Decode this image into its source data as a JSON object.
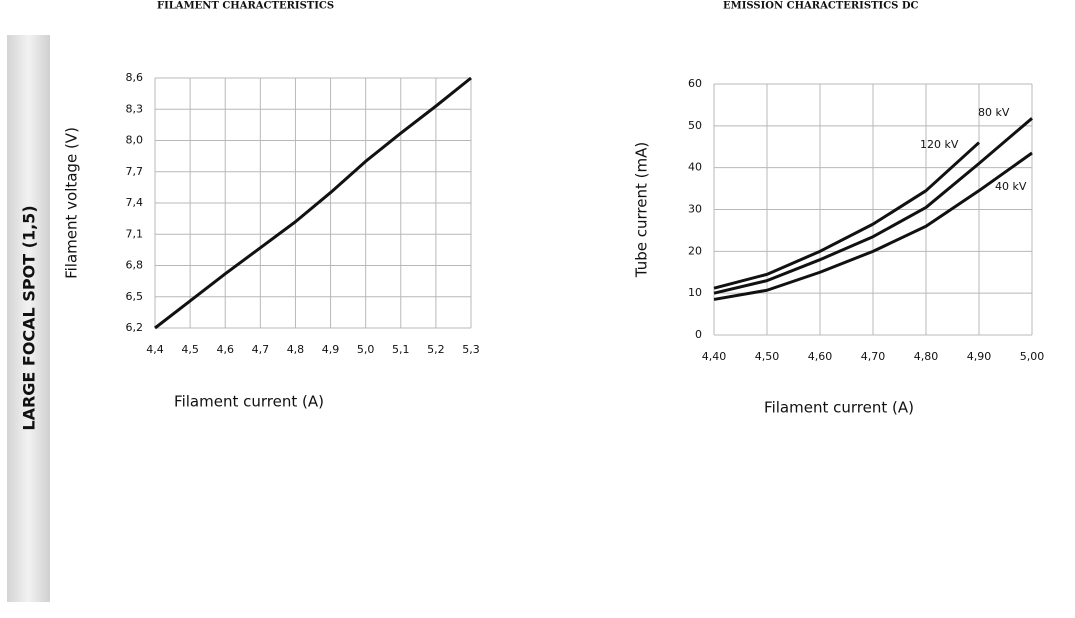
{
  "side_label": "LARGE FOCAL SPOT (1,5)",
  "chart_data": [
    {
      "type": "line",
      "title": "FILAMENT CHARACTERISTICS",
      "x_label": "Filament current (A)",
      "y_label": "Filament voltage (V)",
      "x": [
        4.4,
        4.5,
        4.6,
        4.7,
        4.8,
        4.9,
        5.0,
        5.1,
        5.2,
        5.3
      ],
      "values": [
        6.2,
        6.46,
        6.72,
        6.97,
        7.22,
        7.5,
        7.8,
        8.07,
        8.33,
        8.6
      ],
      "color": "#111111",
      "xlim": [
        4.4,
        5.3
      ],
      "xticks": [
        {
          "value": 4.4,
          "label": "4,4"
        },
        {
          "value": 4.5,
          "label": "4,5"
        },
        {
          "value": 4.6,
          "label": "4,6"
        },
        {
          "value": 4.7,
          "label": "4,7"
        },
        {
          "value": 4.8,
          "label": "4,8"
        },
        {
          "value": 4.9,
          "label": "4,9"
        },
        {
          "value": 5.0,
          "label": "5,0"
        },
        {
          "value": 5.1,
          "label": "5,1"
        },
        {
          "value": 5.2,
          "label": "5,2"
        },
        {
          "value": 5.3,
          "label": "5,3"
        }
      ],
      "ylim": [
        6.2,
        8.6
      ],
      "yticks": [
        {
          "value": 6.2,
          "label": "6,2"
        },
        {
          "value": 6.5,
          "label": "6,5"
        },
        {
          "value": 6.8,
          "label": "6,8"
        },
        {
          "value": 7.1,
          "label": "7,1"
        },
        {
          "value": 7.4,
          "label": "7,4"
        },
        {
          "value": 7.7,
          "label": "7,7"
        },
        {
          "value": 8.0,
          "label": "8,0"
        },
        {
          "value": 8.3,
          "label": "8,3"
        },
        {
          "value": 8.6,
          "label": "8,6"
        }
      ],
      "grid": true
    },
    {
      "type": "line",
      "title": "EMISSION CHARACTERISTICS DC",
      "x_label": "Filament current (A)",
      "y_label": "Tube current (mA)",
      "x": [
        4.4,
        4.5,
        4.6,
        4.7,
        4.8,
        4.9,
        5.0
      ],
      "series": [
        {
          "name": "120 kV",
          "color": "#111111",
          "values": [
            11.2,
            14.5,
            20,
            26.5,
            34.5,
            46,
            null
          ]
        },
        {
          "name": "80 kV",
          "color": "#111111",
          "values": [
            10,
            13,
            18,
            23.5,
            30.5,
            41,
            51.8
          ]
        },
        {
          "name": "40 kV",
          "color": "#111111",
          "values": [
            8.5,
            10.7,
            15,
            20,
            26,
            34.5,
            43.5
          ]
        }
      ],
      "xlim": [
        4.4,
        5.0
      ],
      "xticks": [
        {
          "value": 4.4,
          "label": "4,40"
        },
        {
          "value": 4.5,
          "label": "4,50"
        },
        {
          "value": 4.6,
          "label": "4,60"
        },
        {
          "value": 4.7,
          "label": "4,70"
        },
        {
          "value": 4.8,
          "label": "4,80"
        },
        {
          "value": 4.9,
          "label": "4,90"
        },
        {
          "value": 5.0,
          "label": "5,00"
        }
      ],
      "ylim": [
        0,
        60
      ],
      "yticks": [
        0,
        10,
        20,
        30,
        40,
        50,
        60
      ],
      "grid": true
    }
  ]
}
